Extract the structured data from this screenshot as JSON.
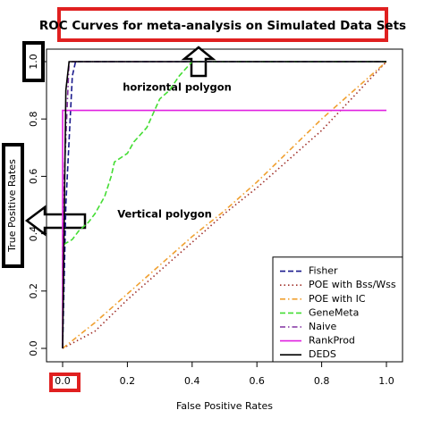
{
  "chart_data": {
    "type": "line",
    "title": "ROC Curves for meta-analysis on Simulated Data Sets",
    "xlabel": "False Positive Rates",
    "ylabel": "True Positive Rates",
    "annotations": [
      "horizontal polygon",
      "Vertical polygon"
    ],
    "xlim": [
      0,
      1
    ],
    "ylim": [
      0,
      1
    ],
    "xticks": [
      {
        "value": 0,
        "label": "0.0"
      },
      0.2,
      0.4,
      0.6,
      0.8,
      {
        "value": 1,
        "label": "1.0"
      }
    ],
    "yticks": [
      {
        "value": 0,
        "label": "0.0"
      },
      0.2,
      0.4,
      0.6,
      0.8,
      {
        "value": 1,
        "label": "1.0"
      }
    ],
    "legend": "bottom-right",
    "series": [
      {
        "name": "Fisher",
        "color": "#1a1a8c",
        "linestyle": "dashed",
        "x": [
          0,
          0.01,
          0.03,
          0.04,
          1
        ],
        "values": [
          0,
          0.5,
          0.95,
          1,
          1
        ]
      },
      {
        "name": "POE with Bss/Wss",
        "color": "#a0302a",
        "linestyle": "dotted",
        "x": [
          0,
          0.1,
          0.2,
          0.3,
          0.4,
          0.5,
          0.6,
          0.7,
          0.8,
          0.9,
          1
        ],
        "values": [
          0,
          0.06,
          0.17,
          0.27,
          0.37,
          0.47,
          0.56,
          0.66,
          0.76,
          0.88,
          1
        ]
      },
      {
        "name": "POE with IC",
        "color": "#f0a030",
        "linestyle": "dashdot",
        "x": [
          0,
          0.1,
          0.2,
          0.3,
          0.4,
          0.5,
          0.6,
          0.7,
          0.8,
          0.9,
          1
        ],
        "values": [
          0,
          0.09,
          0.19,
          0.29,
          0.39,
          0.48,
          0.58,
          0.69,
          0.8,
          0.9,
          1
        ]
      },
      {
        "name": "GeneMeta",
        "color": "#44dd33",
        "linestyle": "dashed",
        "x": [
          0,
          0,
          0.03,
          0.05,
          0.08,
          0.1,
          0.13,
          0.15,
          0.16,
          0.2,
          0.22,
          0.26,
          0.28,
          0.3,
          0.33,
          0.36,
          0.4,
          1
        ],
        "values": [
          0,
          0.36,
          0.38,
          0.41,
          0.44,
          0.47,
          0.53,
          0.6,
          0.65,
          0.68,
          0.72,
          0.77,
          0.82,
          0.87,
          0.9,
          0.95,
          1,
          1
        ]
      },
      {
        "name": "Naive",
        "color": "#8030a0",
        "linestyle": "dashdot",
        "x": [
          0,
          0.005,
          0.02,
          1
        ],
        "values": [
          0,
          0.6,
          1,
          1
        ]
      },
      {
        "name": "RankProd",
        "color": "#e020e0",
        "linestyle": "solid",
        "x": [
          0,
          0,
          1
        ],
        "values": [
          0,
          0.83,
          0.83
        ]
      },
      {
        "name": "DEDS",
        "color": "#000000",
        "linestyle": "solid",
        "x": [
          0,
          0.01,
          0.02,
          1
        ],
        "values": [
          0,
          0.9,
          1,
          1
        ]
      }
    ]
  }
}
